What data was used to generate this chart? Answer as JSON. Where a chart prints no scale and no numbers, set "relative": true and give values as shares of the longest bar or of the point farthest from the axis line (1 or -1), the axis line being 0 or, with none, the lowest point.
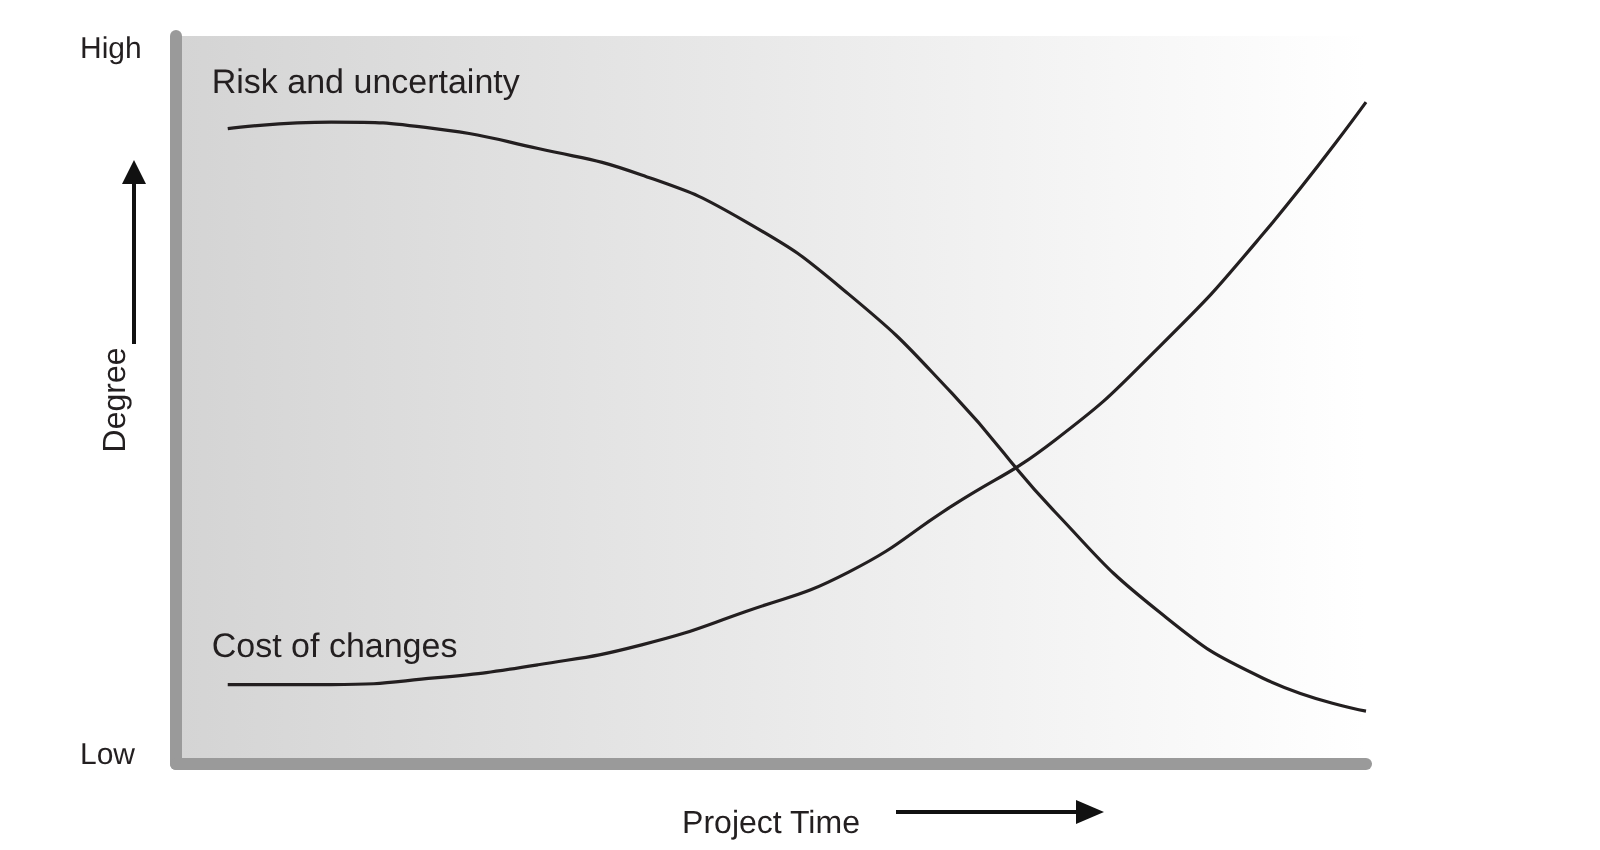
{
  "chart_data": {
    "type": "line",
    "relative": true,
    "xlabel": "Project Time",
    "ylabel": "Degree",
    "annotations": [
      "High",
      "Low"
    ],
    "categories": [
      null,
      null,
      null,
      null,
      null,
      null,
      null,
      null,
      null,
      null,
      null,
      null
    ],
    "marker": "none",
    "grid": false,
    "legend": false,
    "series": [
      {
        "name": "Risk and uncertainty",
        "color": "#231f20",
        "values": [
          0.96,
          0.97,
          0.96,
          0.93,
          0.89,
          0.82,
          0.71,
          0.56,
          0.38,
          0.23,
          0.13,
          0.08
        ]
      },
      {
        "name": "Cost of changes",
        "color": "#231f20",
        "values": [
          0.12,
          0.12,
          0.13,
          0.15,
          0.18,
          0.23,
          0.29,
          0.39,
          0.49,
          0.63,
          0.8,
          1
        ]
      }
    ]
  }
}
